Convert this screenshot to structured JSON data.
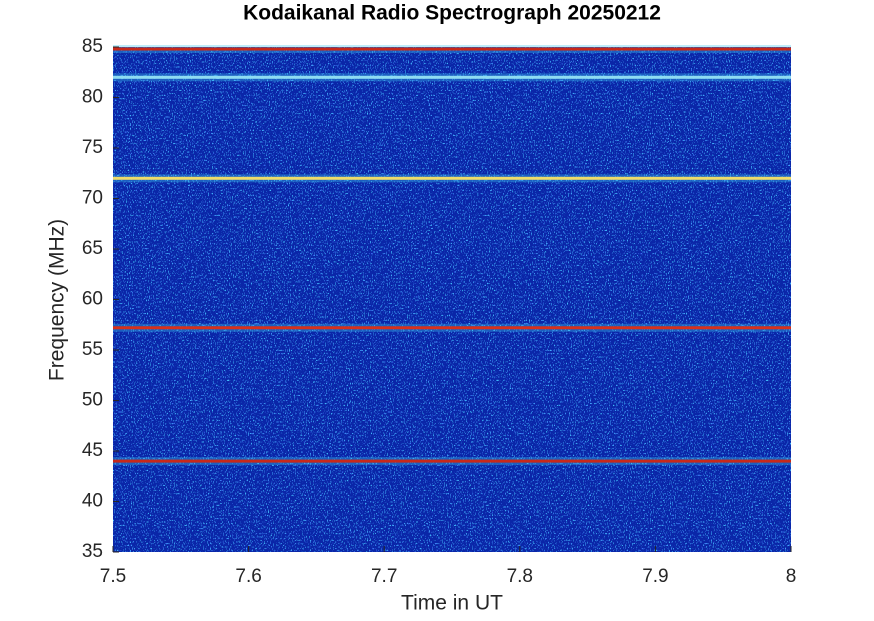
{
  "chart_data": {
    "type": "spectrogram",
    "title": "Kodaikanal Radio Spectrograph  20250212",
    "x_label": "Time in UT",
    "y_label": "Frequency (MHz)",
    "xlim": [
      7.5,
      8
    ],
    "xticks": [
      7.5,
      7.6,
      7.7,
      7.8,
      7.9,
      8
    ],
    "ylim": [
      35,
      85
    ],
    "yticks": [
      35,
      40,
      45,
      50,
      55,
      60,
      65,
      70,
      75,
      80,
      85
    ],
    "background_color": "#0a26a8",
    "bands": [
      {
        "y": 84.8,
        "color": "#c8281a"
      },
      {
        "y": 82,
        "color": "#8fdcf2"
      },
      {
        "y": 72,
        "color": "#eedc6a"
      },
      {
        "y": 57.2,
        "color": "#d8301a"
      },
      {
        "y": 44,
        "color": "#c8281a"
      }
    ]
  }
}
